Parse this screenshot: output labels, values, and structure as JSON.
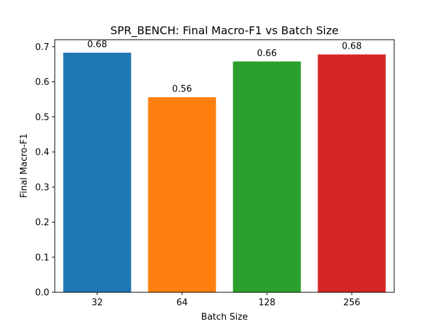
{
  "chart_data": {
    "type": "bar",
    "title": "SPR_BENCH: Final Macro-F1 vs Batch Size",
    "xlabel": "Batch Size",
    "ylabel": "Final Macro-F1",
    "categories": [
      "32",
      "64",
      "128",
      "256"
    ],
    "values": [
      0.683,
      0.556,
      0.658,
      0.678
    ],
    "value_labels": [
      "0.68",
      "0.56",
      "0.66",
      "0.68"
    ],
    "colors": [
      "#1f77b4",
      "#ff7f0e",
      "#2ca02c",
      "#d62728"
    ],
    "ylim": [
      0,
      0.72
    ],
    "yticks": [
      0.0,
      0.1,
      0.2,
      0.3,
      0.4,
      0.5,
      0.6,
      0.7
    ],
    "ytick_labels": [
      "0.0",
      "0.1",
      "0.2",
      "0.3",
      "0.4",
      "0.5",
      "0.6",
      "0.7"
    ],
    "grid": false,
    "legend": "none"
  }
}
